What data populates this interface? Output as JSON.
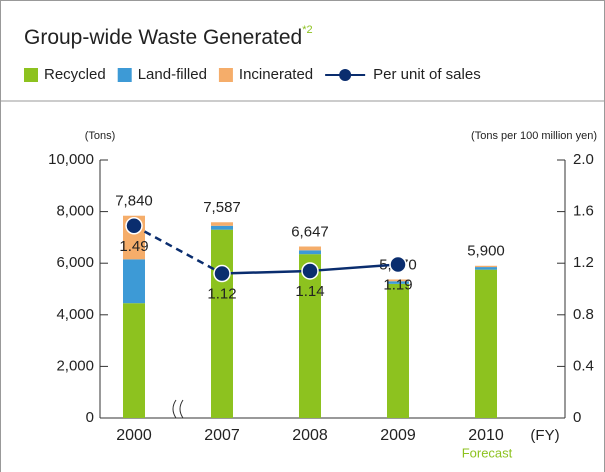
{
  "chart_data": {
    "type": "stacked-bar-line",
    "title": "Group-wide Waste Generated",
    "title_note": "*2",
    "y_label": "(Tons)",
    "y2_label": "(Tons per 100 million yen)",
    "x_label": "(FY)",
    "annotation": "Forecast",
    "categories": [
      "2000",
      "2007",
      "2008",
      "2009",
      "2010"
    ],
    "series": [
      {
        "name": "Recycled",
        "color": "#8dc21f",
        "values": [
          4450,
          7300,
          6350,
          5200,
          5750
        ]
      },
      {
        "name": "Land-filled",
        "color": "#3d9ad6",
        "values": [
          1700,
          150,
          150,
          100,
          100
        ]
      },
      {
        "name": "Incinerated",
        "color": "#f5ad6a",
        "values": [
          1690,
          137,
          147,
          70,
          50
        ]
      },
      {
        "name": "Per unit of sales",
        "color": "#0a2d6e",
        "axis": "y2",
        "values": [
          1.49,
          1.12,
          1.14,
          1.19,
          null
        ],
        "dashed_segments": [
          0
        ]
      }
    ],
    "totals": [
      7840,
      7587,
      6647,
      5370,
      5900
    ],
    "total_labels": [
      "7,840",
      "7,587",
      "6,647",
      "5,370",
      "5,900"
    ],
    "ylim": [
      0,
      10000
    ],
    "yticks": [
      0,
      {
        "value": 2000,
        "label": "2,000"
      },
      {
        "value": 4000,
        "label": "4,000"
      },
      {
        "value": 6000,
        "label": "6,000"
      },
      {
        "value": 8000,
        "label": "8,000"
      },
      {
        "value": 10000,
        "label": "10,000"
      }
    ],
    "y2lim": [
      0,
      2
    ],
    "y2ticks": [
      0,
      0.4,
      0.8,
      1.2,
      1.6,
      {
        "value": 2,
        "label": "2.0"
      }
    ]
  }
}
